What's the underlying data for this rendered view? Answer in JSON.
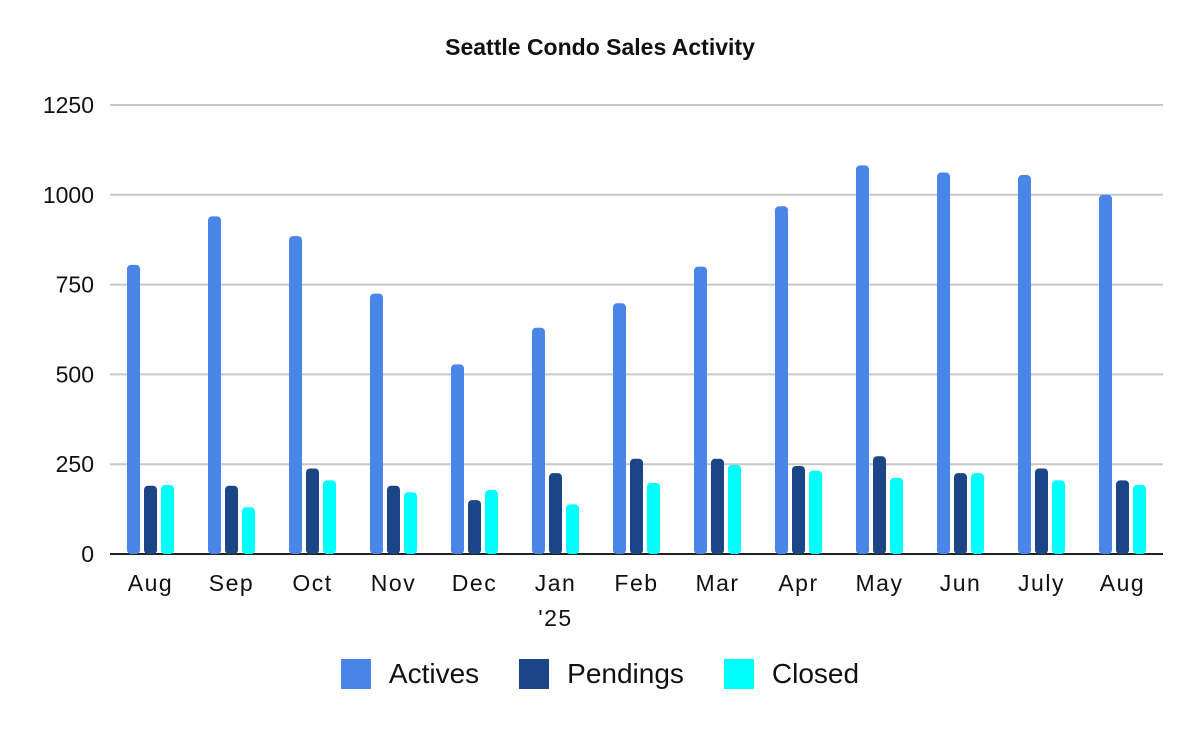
{
  "chart_data": {
    "type": "bar",
    "title": "Seattle Condo Sales Activity",
    "xlabel": "",
    "ylabel": "",
    "ylim": [
      0,
      1250
    ],
    "yticks": [
      0,
      250,
      500,
      750,
      1000,
      1250
    ],
    "grid": true,
    "legend_position": "bottom",
    "categories": [
      "Aug",
      "Sep",
      "Oct",
      "Nov",
      "Dec",
      "Jan\n'25",
      "Feb",
      "Mar",
      "Apr",
      "May",
      "Jun",
      "July",
      "Aug"
    ],
    "series": [
      {
        "name": "Actives",
        "color": "#4A86E8",
        "values": [
          805,
          940,
          885,
          725,
          528,
          630,
          698,
          800,
          968,
          1082,
          1062,
          1055,
          1000
        ]
      },
      {
        "name": "Pendings",
        "color": "#1C4587",
        "values": [
          190,
          190,
          238,
          190,
          150,
          225,
          265,
          265,
          245,
          272,
          225,
          238,
          205
        ]
      },
      {
        "name": "Closed",
        "color": "#00FFFF",
        "values": [
          192,
          130,
          205,
          172,
          178,
          138,
          198,
          248,
          232,
          212,
          225,
          205,
          192
        ]
      }
    ]
  }
}
